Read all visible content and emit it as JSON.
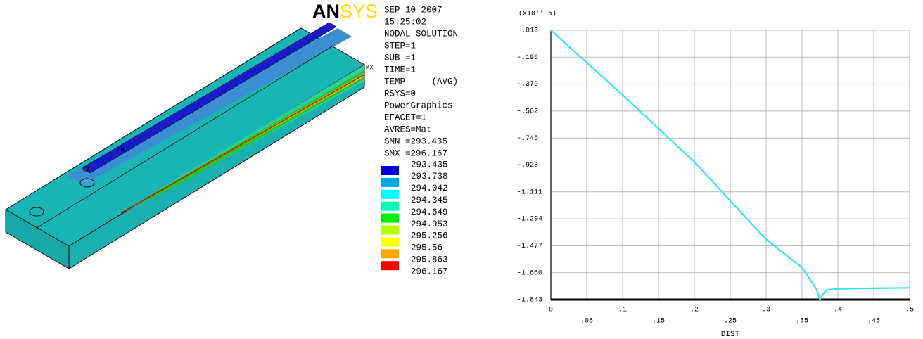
{
  "result_panel": {
    "logo": {
      "an": "AN",
      "sys": "SYS"
    },
    "model_labels": {
      "max": "MX",
      "min": "MN"
    },
    "info": [
      "SEP 10 2007",
      "15:25:02",
      "NODAL SOLUTION",
      "STEP=1",
      "SUB =1",
      "TIME=1",
      "TEMP     (AVG)",
      "RSYS=0",
      "PowerGraphics",
      "EFACET=1",
      "AVRES=Mat",
      "SMN =293.435",
      "SMX =296.167"
    ],
    "legend": {
      "labels": [
        "293.435",
        "293.738",
        "294.042",
        "294.345",
        "294.649",
        "294.953",
        "295.256",
        "295.56",
        "295.863",
        "296.167"
      ],
      "colors": [
        "#0000d8",
        "#00a8e8",
        "#00ffff",
        "#00ffb4",
        "#00f000",
        "#b4ff00",
        "#ffff00",
        "#ffa800",
        "#ff0000"
      ]
    }
  },
  "chart_data": {
    "type": "line",
    "y_label": "(x10**-5)",
    "x_label": "DIST",
    "color": "#33e6e6",
    "x": [
      0,
      0.1,
      0.2,
      0.3,
      0.35,
      0.37,
      0.375,
      0.38,
      0.385,
      0.4,
      0.45,
      0.5
    ],
    "values": [
      -0.013,
      -0.453,
      -0.908,
      -1.434,
      -1.625,
      -1.77,
      -1.843,
      -1.8,
      -1.777,
      -1.77,
      -1.766,
      -1.763
    ],
    "xlim": [
      0,
      0.5
    ],
    "ylim": [
      -1.843,
      -0.013
    ],
    "xticks": [
      0,
      {
        "value": 0.05,
        "label": ".05"
      },
      {
        "value": 0.1,
        "label": ".1"
      },
      {
        "value": 0.15,
        "label": ".15"
      },
      {
        "value": 0.2,
        "label": ".2"
      },
      {
        "value": 0.25,
        "label": ".25"
      },
      {
        "value": 0.3,
        "label": ".3"
      },
      {
        "value": 0.35,
        "label": ".35"
      },
      {
        "value": 0.4,
        "label": ".4"
      },
      {
        "value": 0.45,
        "label": ".45"
      },
      {
        "value": 0.5,
        "label": ".5"
      }
    ],
    "yticks": [
      {
        "value": -0.013,
        "label": "-.013"
      },
      {
        "value": -0.196,
        "label": "-.196"
      },
      {
        "value": -0.379,
        "label": "-.379"
      },
      {
        "value": -0.562,
        "label": "-.562"
      },
      {
        "value": -0.745,
        "label": "-.745"
      },
      {
        "value": -0.928,
        "label": "-.928"
      },
      {
        "value": -1.111,
        "label": "-1.111"
      },
      {
        "value": -1.294,
        "label": "-1.294"
      },
      {
        "value": -1.477,
        "label": "-1.477"
      },
      {
        "value": -1.66,
        "label": "-1.660"
      },
      {
        "value": -1.843,
        "label": "-1.843"
      }
    ],
    "grid": true
  }
}
